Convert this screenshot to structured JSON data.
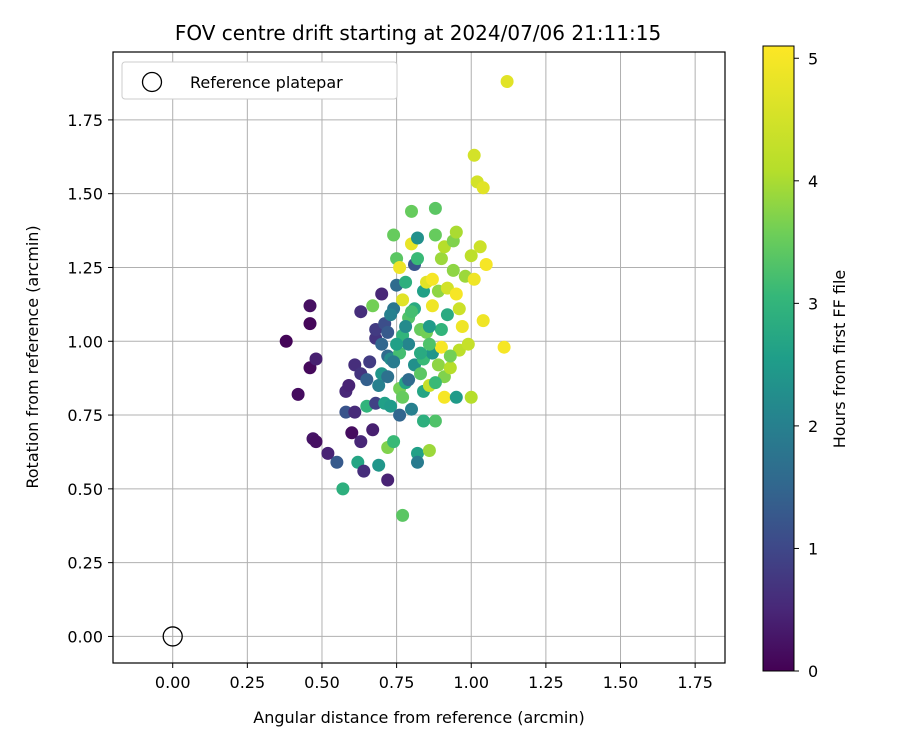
{
  "chart_data": {
    "type": "scatter",
    "title": "FOV centre drift starting at 2024/07/06 21:11:15",
    "xlabel": "Angular distance from reference (arcmin)",
    "ylabel": "Rotation from reference (arcmin)",
    "xlim": [
      -0.2,
      1.85
    ],
    "ylim": [
      -0.09,
      1.98
    ],
    "xticks": [
      0.0,
      0.25,
      0.5,
      0.75,
      1.0,
      1.25,
      1.5,
      1.75
    ],
    "xtick_labels": [
      "0.00",
      "0.25",
      "0.50",
      "0.75",
      "1.00",
      "1.25",
      "1.50",
      "1.75"
    ],
    "yticks": [
      0.0,
      0.25,
      0.5,
      0.75,
      1.0,
      1.25,
      1.5,
      1.75
    ],
    "ytick_labels": [
      "0.00",
      "0.25",
      "0.50",
      "0.75",
      "1.00",
      "1.25",
      "1.50",
      "1.75"
    ],
    "grid": true,
    "legend": {
      "position": "top-left",
      "entries": [
        "Reference platepar"
      ]
    },
    "reference_point": {
      "x": 0.0,
      "y": 0.0,
      "label": "Reference platepar"
    },
    "colorbar": {
      "label": "Hours from first FF file",
      "colormap": "viridis",
      "range": [
        0,
        5.1
      ],
      "ticks": [
        0,
        1,
        2,
        3,
        4,
        5
      ],
      "tick_labels": [
        "0",
        "1",
        "2",
        "3",
        "4",
        "5"
      ]
    },
    "points": [
      [
        0.38,
        1.0,
        0.05
      ],
      [
        0.42,
        0.82,
        0.15
      ],
      [
        0.46,
        0.91,
        0.1
      ],
      [
        0.46,
        1.06,
        0.08
      ],
      [
        0.46,
        1.12,
        0.2
      ],
      [
        0.47,
        0.67,
        0.25
      ],
      [
        0.48,
        0.66,
        0.2
      ],
      [
        0.48,
        0.94,
        0.4
      ],
      [
        0.52,
        0.62,
        0.45
      ],
      [
        0.55,
        0.59,
        1.3
      ],
      [
        0.57,
        0.5,
        2.9
      ],
      [
        0.58,
        0.83,
        0.5
      ],
      [
        0.58,
        0.76,
        1.2
      ],
      [
        0.59,
        0.85,
        0.45
      ],
      [
        0.6,
        0.69,
        0.15
      ],
      [
        0.61,
        0.76,
        0.55
      ],
      [
        0.61,
        0.92,
        0.6
      ],
      [
        0.62,
        0.59,
        2.7
      ],
      [
        0.63,
        0.66,
        0.5
      ],
      [
        0.63,
        0.89,
        0.7
      ],
      [
        0.63,
        1.1,
        0.6
      ],
      [
        0.64,
        0.56,
        0.6
      ],
      [
        0.65,
        0.78,
        3.0
      ],
      [
        0.65,
        0.87,
        1.4
      ],
      [
        0.66,
        0.93,
        0.8
      ],
      [
        0.67,
        0.7,
        0.4
      ],
      [
        0.67,
        1.12,
        3.6
      ],
      [
        0.68,
        1.01,
        0.7
      ],
      [
        0.68,
        1.04,
        0.8
      ],
      [
        0.68,
        0.79,
        0.9
      ],
      [
        0.69,
        0.58,
        2.4
      ],
      [
        0.69,
        0.85,
        2.0
      ],
      [
        0.7,
        0.89,
        2.4
      ],
      [
        0.7,
        1.16,
        0.5
      ],
      [
        0.7,
        0.99,
        1.5
      ],
      [
        0.71,
        0.79,
        2.6
      ],
      [
        0.71,
        1.06,
        1.1
      ],
      [
        0.72,
        0.53,
        0.45
      ],
      [
        0.72,
        0.64,
        3.7
      ],
      [
        0.72,
        0.88,
        1.7
      ],
      [
        0.72,
        1.03,
        1.3
      ],
      [
        0.72,
        0.95,
        1.6
      ],
      [
        0.73,
        0.78,
        2.5
      ],
      [
        0.73,
        0.94,
        2.2
      ],
      [
        0.74,
        1.36,
        3.5
      ],
      [
        0.74,
        0.66,
        3.1
      ],
      [
        0.74,
        1.11,
        1.8
      ],
      [
        0.75,
        1.28,
        3.4
      ],
      [
        0.75,
        1.19,
        1.6
      ],
      [
        0.76,
        0.84,
        3.6
      ],
      [
        0.76,
        0.75,
        1.5
      ],
      [
        0.76,
        0.96,
        3.2
      ],
      [
        0.76,
        1.25,
        4.9
      ],
      [
        0.77,
        0.41,
        3.4
      ],
      [
        0.77,
        1.02,
        3.0
      ],
      [
        0.77,
        1.14,
        4.7
      ],
      [
        0.78,
        0.86,
        2.7
      ],
      [
        0.78,
        1.2,
        2.9
      ],
      [
        0.79,
        0.99,
        2.1
      ],
      [
        0.79,
        1.08,
        3.3
      ],
      [
        0.8,
        1.44,
        3.5
      ],
      [
        0.8,
        1.33,
        4.8
      ],
      [
        0.81,
        1.11,
        2.8
      ],
      [
        0.81,
        0.92,
        2.3
      ],
      [
        0.81,
        1.26,
        1.2
      ],
      [
        0.82,
        0.62,
        2.6
      ],
      [
        0.82,
        1.35,
        2.3
      ],
      [
        0.82,
        0.59,
        1.9
      ],
      [
        0.83,
        1.04,
        3.5
      ],
      [
        0.83,
        0.89,
        3.4
      ],
      [
        0.84,
        1.17,
        2.6
      ],
      [
        0.84,
        0.83,
        2.7
      ],
      [
        0.84,
        0.94,
        3.1
      ],
      [
        0.85,
        1.2,
        4.7
      ],
      [
        0.85,
        1.03,
        3.6
      ],
      [
        0.86,
        0.63,
        3.9
      ],
      [
        0.86,
        0.85,
        4.3
      ],
      [
        0.87,
        1.21,
        5.0
      ],
      [
        0.87,
        1.12,
        4.9
      ],
      [
        0.87,
        0.96,
        2.4
      ],
      [
        0.88,
        1.36,
        3.5
      ],
      [
        0.88,
        1.45,
        3.4
      ],
      [
        0.88,
        0.73,
        3.3
      ],
      [
        0.89,
        0.92,
        3.8
      ],
      [
        0.89,
        1.17,
        3.8
      ],
      [
        0.9,
        0.98,
        5.0
      ],
      [
        0.9,
        1.28,
        3.9
      ],
      [
        0.9,
        1.04,
        3.0
      ],
      [
        0.91,
        0.88,
        3.7
      ],
      [
        0.91,
        1.32,
        4.1
      ],
      [
        0.91,
        0.81,
        5.0
      ],
      [
        0.92,
        1.18,
        4.5
      ],
      [
        0.92,
        1.09,
        2.8
      ],
      [
        0.93,
        0.91,
        4.1
      ],
      [
        0.94,
        1.34,
        3.7
      ],
      [
        0.94,
        1.24,
        3.8
      ],
      [
        0.95,
        1.37,
        4.0
      ],
      [
        0.95,
        1.16,
        5.0
      ],
      [
        0.95,
        0.81,
        2.5
      ],
      [
        0.96,
        0.97,
        4.2
      ],
      [
        0.96,
        1.11,
        4.4
      ],
      [
        0.97,
        1.05,
        4.9
      ],
      [
        0.98,
        1.22,
        3.9
      ],
      [
        0.99,
        0.99,
        4.3
      ],
      [
        1.0,
        0.81,
        4.1
      ],
      [
        1.0,
        1.29,
        4.2
      ],
      [
        1.01,
        1.63,
        4.5
      ],
      [
        1.01,
        1.21,
        4.9
      ],
      [
        1.02,
        1.54,
        4.5
      ],
      [
        1.03,
        1.32,
        4.4
      ],
      [
        1.04,
        1.07,
        4.9
      ],
      [
        1.04,
        1.52,
        4.7
      ],
      [
        1.05,
        1.26,
        5.0
      ],
      [
        1.11,
        0.98,
        5.0
      ],
      [
        1.12,
        1.88,
        4.7
      ],
      [
        0.79,
        0.87,
        1.6
      ],
      [
        0.8,
        0.77,
        2.0
      ],
      [
        0.74,
        0.93,
        1.9
      ],
      [
        0.83,
        0.96,
        2.8
      ],
      [
        0.86,
        1.05,
        2.5
      ],
      [
        0.78,
        1.05,
        2.2
      ],
      [
        0.75,
        0.99,
        2.6
      ],
      [
        0.8,
        1.1,
        3.2
      ],
      [
        0.82,
        1.28,
        3.1
      ],
      [
        0.84,
        0.73,
        2.9
      ],
      [
        0.88,
        0.86,
        3.1
      ],
      [
        0.77,
        0.81,
        3.5
      ],
      [
        0.73,
        1.09,
        2.0
      ],
      [
        0.86,
        0.99,
        3.3
      ],
      [
        0.93,
        0.95,
        3.6
      ]
    ]
  }
}
